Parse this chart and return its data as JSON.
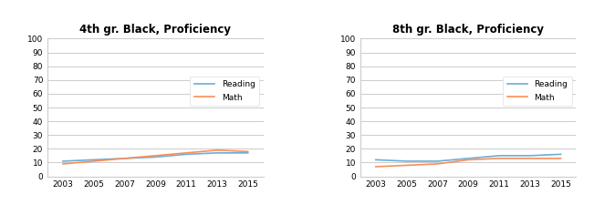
{
  "chart1": {
    "title": "4th gr. Black, Proficiency",
    "years": [
      2003,
      2005,
      2007,
      2009,
      2011,
      2013,
      2015
    ],
    "reading": [
      11,
      12,
      13,
      14,
      16,
      17,
      17
    ],
    "math": [
      9,
      11,
      13,
      15,
      17,
      19,
      18
    ]
  },
  "chart2": {
    "title": "8th gr. Black, Proficiency",
    "years": [
      2003,
      2005,
      2007,
      2009,
      2011,
      2013,
      2015
    ],
    "reading": [
      12,
      11,
      11,
      13,
      15,
      15,
      16
    ],
    "math": [
      7,
      8,
      9,
      12,
      13,
      13,
      13
    ]
  },
  "reading_color": "#6baed6",
  "math_color": "#fc8d59",
  "ylim": [
    0,
    100
  ],
  "yticks": [
    0,
    10,
    20,
    30,
    40,
    50,
    60,
    70,
    80,
    90,
    100
  ],
  "grid_color": "#cccccc",
  "legend_labels": [
    "Reading",
    "Math"
  ],
  "line_width": 1.2,
  "background_color": "#ffffff",
  "title_fontsize": 8.5,
  "tick_fontsize": 6.5
}
